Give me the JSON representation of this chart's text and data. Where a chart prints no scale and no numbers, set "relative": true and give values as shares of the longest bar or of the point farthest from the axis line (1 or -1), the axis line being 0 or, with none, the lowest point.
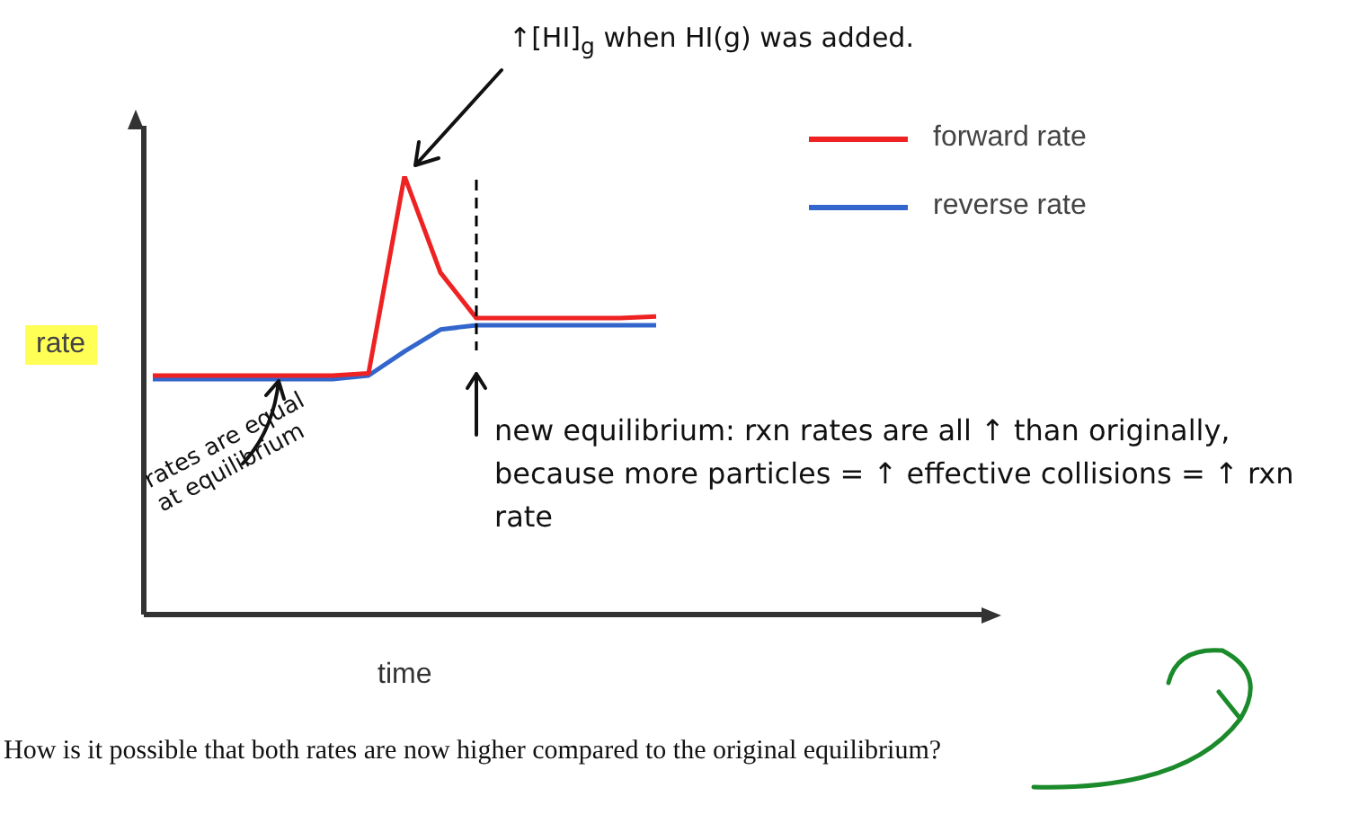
{
  "chart_data": {
    "type": "line",
    "relative": true,
    "xlabel": "time",
    "ylabel": "rate",
    "categories": [
      null,
      null,
      null,
      null,
      null,
      null,
      null,
      null,
      null,
      null,
      null,
      null,
      null,
      null,
      null,
      null,
      null,
      null,
      null,
      null,
      null,
      null,
      null,
      null
    ],
    "series": [
      {
        "name": "forward rate",
        "color": "#ee2222",
        "values": [
          0.545,
          0.545,
          0.545,
          0.545,
          0.545,
          0.545,
          0.55,
          1,
          0.78,
          0.676,
          0.676,
          0.676,
          0.676,
          0.676,
          0.68,
          null,
          null,
          null,
          null,
          null,
          null,
          null,
          null,
          null
        ]
      },
      {
        "name": "reverse rate",
        "color": "#3366cc",
        "values": [
          0.537,
          0.537,
          0.537,
          0.537,
          0.537,
          0.537,
          0.545,
          0.6,
          0.65,
          0.66,
          0.66,
          0.66,
          0.66,
          0.66,
          0.66,
          null,
          null,
          null,
          null,
          null,
          null,
          null,
          null,
          null
        ]
      }
    ],
    "legend": "top right",
    "marker": "none",
    "line_style": "solid",
    "annotations": [
      "↑[HI]$_{g}$ when HI(g) was added.",
      "rates are equal at equilibrium",
      "new equilibrium: rxn rates are all ↑ than originally, because more particles = ↑ effective collisions = ↑ rxn rate",
      "How is it possible that both rates are now higher compared to the original equilibrium?"
    ]
  }
}
